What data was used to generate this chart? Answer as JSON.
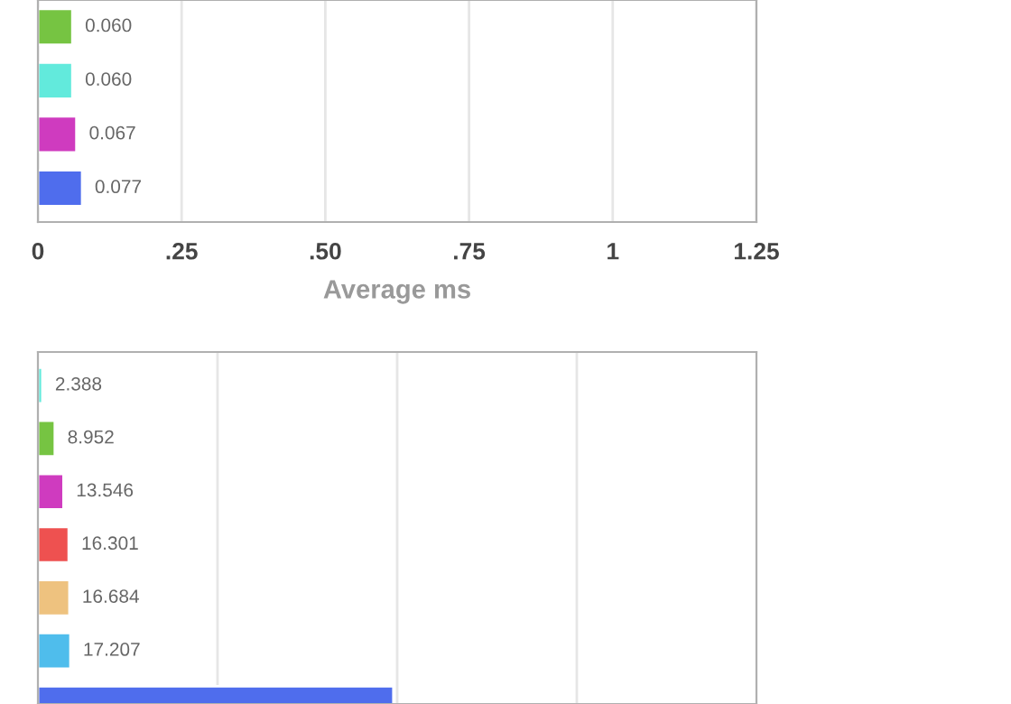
{
  "chart_data": [
    {
      "type": "bar",
      "orientation": "horizontal",
      "xlabel": "Average ms",
      "categories": [
        null,
        null,
        null,
        null
      ],
      "values": [
        0.06,
        0.06,
        0.067,
        0.077
      ],
      "value_labels": [
        "0.060",
        "0.060",
        "0.067",
        "0.077"
      ],
      "colors": [
        "#76c442",
        "#62eadc",
        "#cf3bbf",
        "#4f6ded"
      ],
      "xlim": [
        0,
        1.25
      ],
      "xticks": [
        0,
        {
          "value": 0.25,
          "label": ".25"
        },
        {
          "value": 0.5,
          "label": ".50"
        },
        {
          "value": 0.75,
          "label": ".75"
        },
        1,
        1.25
      ],
      "grid": "x",
      "tick_labels": "x"
    },
    {
      "type": "bar",
      "orientation": "horizontal",
      "categories": [
        null,
        null,
        null,
        null,
        null,
        null,
        null
      ],
      "values": [
        2.388,
        8.952,
        13.546,
        16.301,
        16.684,
        17.207,
        188
      ],
      "value_labels": [
        "2.388",
        "8.952",
        "13.546",
        "16.301",
        "16.684",
        "17.207",
        null
      ],
      "colors": [
        "#62eadc",
        "#76c442",
        "#cf3bbf",
        "#ee5150",
        "#eec27f",
        "#4fbdec",
        "#4f6ded"
      ],
      "xlim": [
        0,
        380
      ],
      "xticks": [
        {
          "value": 95,
          "label": null
        },
        {
          "value": 190,
          "label": null
        },
        {
          "value": 285,
          "label": null
        }
      ],
      "grid": "x",
      "tick_labels": false
    }
  ]
}
